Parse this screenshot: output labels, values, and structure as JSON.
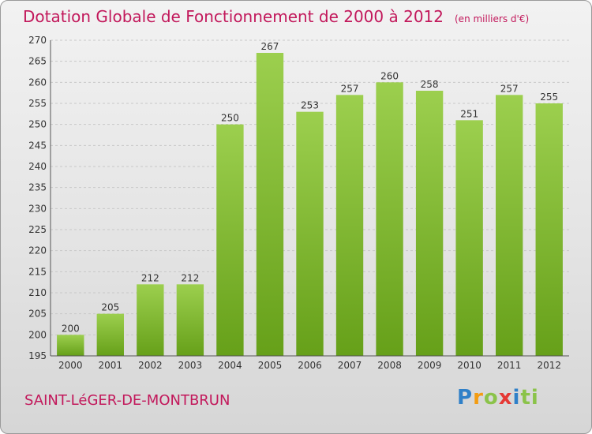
{
  "header": {
    "title": "Dotation Globale de Fonctionnement de 2000 à 2012",
    "unit": "(en milliers d'€)"
  },
  "commune": "SAINT-LéGER-DE-MONTBRUN",
  "brand": {
    "l1": "P",
    "l2": "r",
    "l3": "o",
    "l4": "x",
    "l5": "i",
    "l6": "ti"
  },
  "colors": {
    "bar_light": "#9ccf4e",
    "bar_dark": "#66a019",
    "accent": "#c2185b"
  },
  "chart_data": {
    "type": "bar",
    "title": "Dotation Globale de Fonctionnement de 2000 à 2012",
    "subtitle": "(en milliers d'€)",
    "categories": [
      "2000",
      "2001",
      "2002",
      "2003",
      "2004",
      "2005",
      "2006",
      "2007",
      "2008",
      "2009",
      "2010",
      "2011",
      "2012"
    ],
    "values": [
      200,
      205,
      212,
      212,
      250,
      267,
      253,
      257,
      260,
      258,
      251,
      257,
      255
    ],
    "ylim": [
      195,
      270
    ],
    "yticks": [
      195,
      200,
      205,
      210,
      215,
      220,
      225,
      230,
      235,
      240,
      245,
      250,
      255,
      260,
      265,
      270
    ],
    "xlabel": "",
    "ylabel": "",
    "grid": true,
    "legend": "none"
  }
}
